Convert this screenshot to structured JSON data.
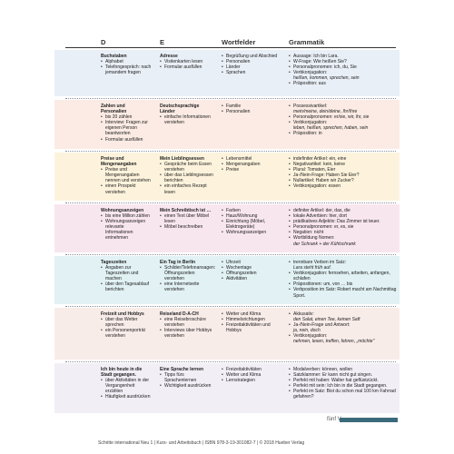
{
  "headers": [
    "D",
    "E",
    "Wortfelder",
    "Grammatik"
  ],
  "colors": {
    "band1": "#e9eff6",
    "band2": "#fbebe4",
    "band3": "#fdf3dc",
    "band4": "#f8e6ef",
    "band5": "#e1f1f4",
    "band6": "#f8ece9",
    "band7": "#f2eef6",
    "teal": "#3b6a7b"
  },
  "rows": [
    {
      "d": {
        "title": "Buchstaben",
        "items": [
          "Alphabet",
          "Telefongespräch: nach jemandem fragen"
        ]
      },
      "e": {
        "title": "Adresse",
        "items": [
          "Visitenkarten lesen",
          "Formular ausfüllen"
        ]
      },
      "w": {
        "items": [
          "Begrüßung und Abschied",
          "Personalien",
          "Länder",
          "Sprachen"
        ]
      },
      "g": {
        "items": [
          {
            "t": "Aussage: Ich bin Lara.",
            "b": 1
          },
          {
            "t": "W-Frage: Wie heißen Sie?",
            "b": 1
          },
          {
            "t": "Personalpronomen: ich, du, Sie",
            "b": 1
          },
          {
            "t": "Verbkonjugation:",
            "b": 1
          },
          {
            "t": "heißen, kommen, sprechen, sein",
            "b": 0,
            "i": 1
          },
          {
            "t": "Präposition: aus",
            "b": 1
          }
        ]
      }
    },
    {
      "d": {
        "title": "Zahlen und Personalien",
        "items": [
          "bis 20 zählen",
          "Interview: Fragen zur eigenen Person beantworten",
          "Formular ausfüllen"
        ]
      },
      "e": {
        "title": "Deutschsprachige Länder",
        "items": [
          "einfache Informationen verstehen"
        ]
      },
      "w": {
        "items": [
          "Familie",
          "Personalien"
        ]
      },
      "g": {
        "items": [
          {
            "t": "Possessivartikel:",
            "b": 1
          },
          {
            "t": "mein/meine, dein/deine, Ihr/Ihre",
            "b": 0,
            "i": 1
          },
          {
            "t": "Personalpronomen: er/sie, wir, ihr, sie",
            "b": 1
          },
          {
            "t": "Verbkonjugation:",
            "b": 1
          },
          {
            "t": "leben, heißen, sprechen, haben, sein",
            "b": 0,
            "i": 1
          },
          {
            "t": "Präposition: in",
            "b": 1
          }
        ]
      }
    },
    {
      "d": {
        "title": "Preise und Mengenangaben",
        "items": [
          "Preise und Mengenangaben nennen und verstehen",
          "einen Prospekt verstehen"
        ]
      },
      "e": {
        "title": "Mein Lieblingsessen",
        "items": [
          "Gespräche beim Essen verstehen",
          "über das Lieblingsessen berichten",
          "ein einfaches Rezept lesen"
        ]
      },
      "w": {
        "items": [
          "Lebensmittel",
          "Mengenangaben",
          "Preise"
        ]
      },
      "g": {
        "items": [
          {
            "t": "indefiniter Artikel: ein, eine",
            "b": 1
          },
          {
            "t": "Negativartikel: kein, keine",
            "b": 1
          },
          {
            "t": "Plural: Tomaten, Eier",
            "b": 1
          },
          {
            "t": "Ja-/Nein-Frage: Haben Sie Eier?",
            "b": 1
          },
          {
            "t": "Nullartikel: Haben wir Zucker?",
            "b": 1
          },
          {
            "t": "Verbkonjugation: essen",
            "b": 1
          }
        ]
      }
    },
    {
      "d": {
        "title": "Wohnungsanzeigen",
        "items": [
          "bis eine Million zählen",
          "Wohnungsanzeigen relevante Informationen entnehmen"
        ]
      },
      "e": {
        "title": "Mein Schreibtisch ist …",
        "items": [
          "einen Text über Möbel lesen",
          "Möbel beschreiben"
        ]
      },
      "w": {
        "items": [
          "Farben",
          "Haus/Wohnung",
          "Einrichtung (Möbel, Elektrogeräte)",
          "Wohnungsanzeigen"
        ]
      },
      "g": {
        "items": [
          {
            "t": "definiter Artikel: der, das, die",
            "b": 1
          },
          {
            "t": "lokale Adverbien: hier, dort",
            "b": 1
          },
          {
            "t": "prädikatives Adjektiv: Das Zimmer ist teuer.",
            "b": 1
          },
          {
            "t": "Personalpronomen: er, es, sie",
            "b": 1
          },
          {
            "t": "Negation: nicht",
            "b": 1
          },
          {
            "t": "Wortbildung Nomen:",
            "b": 1
          },
          {
            "t": "der Schrank + der Kühlschrank",
            "b": 0,
            "i": 1
          }
        ]
      }
    },
    {
      "d": {
        "title": "Tageszeiten",
        "items": [
          "Angaben zur Tageszeiten und machen",
          "über den Tagesablauf berichten"
        ]
      },
      "e": {
        "title": "Ein Tag in Berlin",
        "items": [
          "Schilder/Telefonansagen: Öffnungszeiten verstehen",
          "eine Internetseite verstehen"
        ]
      },
      "w": {
        "items": [
          "Uhrzeit",
          "Wochentage",
          "Öffnungszeiten",
          "Aktivitäten"
        ]
      },
      "g": {
        "items": [
          {
            "t": "trennbare Verben im Satz:",
            "b": 1
          },
          {
            "t": "Lara steht früh auf.",
            "b": 0,
            "i": 1
          },
          {
            "t": "Verbkonjugation: fernsehen, arbeiten, anfangen, schlafen",
            "b": 1
          },
          {
            "t": "Präpositionen: um, von … bis",
            "b": 1
          },
          {
            "t": "Verbposition im Satz: Robert macht am Nachmittag Sport.",
            "b": 1
          }
        ]
      }
    },
    {
      "d": {
        "title": "Freizeit und Hobbys",
        "items": [
          "über das Wetter sprechen",
          "ein Personenporträt verstehen"
        ]
      },
      "e": {
        "title": "Reiseland D-A-CH",
        "items": [
          "eine Reisebroschüre verstehen",
          "Interviews über Hobbys verstehen"
        ]
      },
      "w": {
        "items": [
          "Wetter und Klima",
          "Himmelsrichtungen",
          "Freizeitaktivitäten und Hobbys"
        ]
      },
      "g": {
        "items": [
          {
            "t": "Akkusativ:",
            "b": 1
          },
          {
            "t": "den Salat, einen Tee, keinen Saft",
            "b": 0,
            "i": 1
          },
          {
            "t": "Ja-/Nein-Frage und Antwort:",
            "b": 1
          },
          {
            "t": "ja, nein, doch",
            "b": 0,
            "i": 1
          },
          {
            "t": "Verbkonjugation:",
            "b": 1
          },
          {
            "t": "nehmen, lesen, treffen, fahren, „möchte\"",
            "b": 0,
            "i": 1
          }
        ]
      }
    },
    {
      "d": {
        "title": "Ich bin heute in die Stadt gegangen.",
        "items": [
          "über Aktivitäten in der Vergangenheit erzählen",
          "Häufigkeit ausdrücken"
        ]
      },
      "e": {
        "title": "Eine Sprache lernen",
        "items": [
          "Tipps fürs Sprachenlernen",
          "Wichtigkeit ausdrücken"
        ]
      },
      "w": {
        "items": [
          "Freizeitaktivitäten",
          "Wetter und Klima",
          "Lernstrategien"
        ]
      },
      "g": {
        "items": [
          {
            "t": "Modalverben: können, wollen",
            "b": 1
          },
          {
            "t": "Satzklammer: Er kann nicht gut singen.",
            "b": 1
          },
          {
            "t": "Perfekt mit haben: Walter hat geflüstzückt.",
            "b": 1
          },
          {
            "t": "Perfekt mit sein: Ich bin in die Stadt gegangen.",
            "b": 1
          },
          {
            "t": "Perfekt im Satz: Bist du schon mal 100 km Fahrrad gefahren?",
            "b": 1
          }
        ]
      }
    }
  ],
  "page_label": "fünf V",
  "footer": "Schritte international Neu 1 | Kurs- und Arbeitsbuch | ISBN 978-3-19-301082-7 | © 2018 Hueber Verlag"
}
